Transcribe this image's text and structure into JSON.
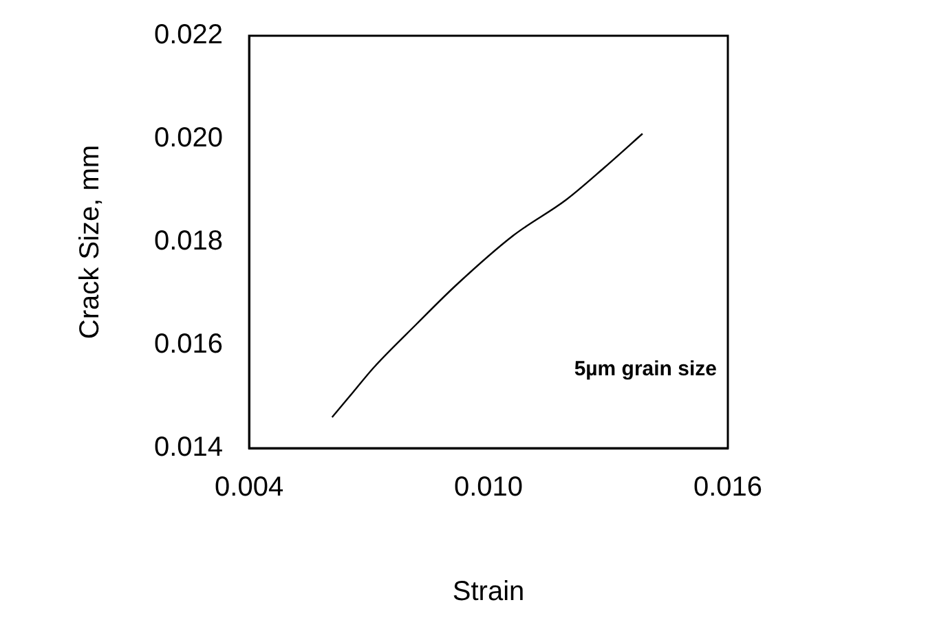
{
  "chart_data": {
    "type": "line",
    "xlabel": "Strain",
    "ylabel": "Crack Size, mm",
    "x": [
      0.00608,
      0.0066,
      0.00712,
      0.0082,
      0.0092,
      0.01063,
      0.01195,
      0.0129,
      0.01386
    ],
    "series": [
      {
        "color": "#000000",
        "values": [
          0.0146,
          0.01508,
          0.01556,
          0.01641,
          0.01717,
          0.01813,
          0.01882,
          0.01944,
          0.0201
        ]
      }
    ],
    "annotations": [
      "5µm grain size"
    ],
    "xlim": [
      0.004,
      0.016
    ],
    "xticks": [
      0.004,
      {
        "value": 0.01,
        "label": "0.010"
      },
      0.016
    ],
    "ylim": [
      0.014,
      0.022
    ],
    "yticks": [
      0.014,
      0.016,
      0.018,
      {
        "value": 0.02,
        "label": "0.020"
      },
      0.022
    ],
    "grid": false,
    "legend": false,
    "marker": "none",
    "line_style": "solid"
  }
}
